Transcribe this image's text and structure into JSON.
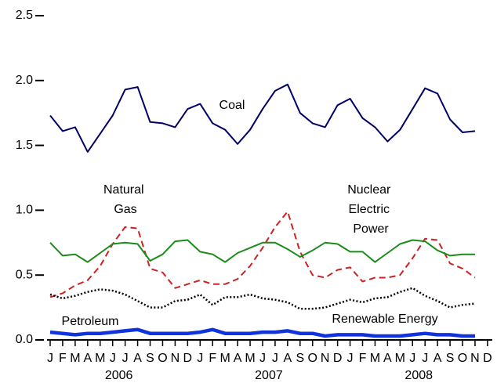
{
  "chart_data": {
    "type": "line",
    "categories": [
      "J",
      "F",
      "M",
      "A",
      "M",
      "J",
      "J",
      "A",
      "S",
      "O",
      "N",
      "D",
      "J",
      "F",
      "M",
      "A",
      "M",
      "J",
      "J",
      "A",
      "S",
      "O",
      "N",
      "D",
      "J",
      "F",
      "M",
      "A",
      "M",
      "J",
      "J",
      "A",
      "S",
      "O",
      "N",
      "D"
    ],
    "year_labels": [
      "2006",
      "2007",
      "2008"
    ],
    "ylim": [
      0,
      2.5
    ],
    "yticks": [
      {
        "value": 0,
        "label": "0.0"
      },
      0.5,
      {
        "value": 1,
        "label": "1.0"
      },
      1.5,
      {
        "value": 2,
        "label": "2.0"
      },
      2.5
    ],
    "series": [
      {
        "name": "Coal",
        "color": "#000066",
        "dash": "solid",
        "width": 2,
        "values": [
          1.73,
          1.61,
          1.64,
          1.45,
          1.59,
          1.73,
          1.93,
          1.95,
          1.68,
          1.67,
          1.64,
          1.78,
          1.82,
          1.67,
          1.62,
          1.51,
          1.62,
          1.78,
          1.92,
          1.97,
          1.75,
          1.67,
          1.64,
          1.81,
          1.86,
          1.71,
          1.64,
          1.53,
          1.62,
          1.78,
          1.94,
          1.9,
          1.7,
          1.6,
          1.61,
          null
        ]
      },
      {
        "name": "Natural Gas",
        "color": "#cc2222",
        "dash": "dashed",
        "width": 2,
        "values": [
          0.33,
          0.36,
          0.42,
          0.46,
          0.57,
          0.74,
          0.87,
          0.86,
          0.55,
          0.52,
          0.4,
          0.43,
          0.46,
          0.43,
          0.43,
          0.47,
          0.57,
          0.71,
          0.87,
          0.99,
          0.68,
          0.5,
          0.48,
          0.54,
          0.56,
          0.45,
          0.48,
          0.48,
          0.5,
          0.63,
          0.78,
          0.77,
          0.59,
          0.55,
          0.48,
          null
        ]
      },
      {
        "name": "Nuclear Electric Power",
        "color": "#1a8c1a",
        "dash": "solid",
        "width": 2,
        "values": [
          0.75,
          0.65,
          0.66,
          0.6,
          0.67,
          0.74,
          0.75,
          0.74,
          0.61,
          0.66,
          0.76,
          0.77,
          0.68,
          0.66,
          0.6,
          0.67,
          0.71,
          0.75,
          0.75,
          0.7,
          0.64,
          0.69,
          0.75,
          0.74,
          0.68,
          0.68,
          0.6,
          0.67,
          0.74,
          0.77,
          0.76,
          0.69,
          0.65,
          0.66,
          0.66,
          null
        ]
      },
      {
        "name": "Renewable Energy",
        "color": "#000000",
        "dash": "dotted",
        "width": 2.5,
        "values": [
          0.35,
          0.32,
          0.34,
          0.37,
          0.39,
          0.38,
          0.35,
          0.3,
          0.25,
          0.25,
          0.3,
          0.31,
          0.35,
          0.27,
          0.33,
          0.33,
          0.35,
          0.32,
          0.31,
          0.29,
          0.24,
          0.24,
          0.25,
          0.28,
          0.31,
          0.29,
          0.32,
          0.33,
          0.37,
          0.4,
          0.34,
          0.3,
          0.25,
          0.27,
          0.28,
          null
        ]
      },
      {
        "name": "Petroleum",
        "color": "#1133dd",
        "dash": "solid",
        "width": 4.5,
        "values": [
          0.06,
          0.05,
          0.04,
          0.05,
          0.05,
          0.06,
          0.07,
          0.08,
          0.05,
          0.05,
          0.05,
          0.05,
          0.06,
          0.08,
          0.05,
          0.05,
          0.05,
          0.06,
          0.06,
          0.07,
          0.05,
          0.05,
          0.03,
          0.04,
          0.04,
          0.04,
          0.03,
          0.03,
          0.03,
          0.04,
          0.05,
          0.04,
          0.04,
          0.03,
          0.03,
          null
        ]
      }
    ]
  }
}
